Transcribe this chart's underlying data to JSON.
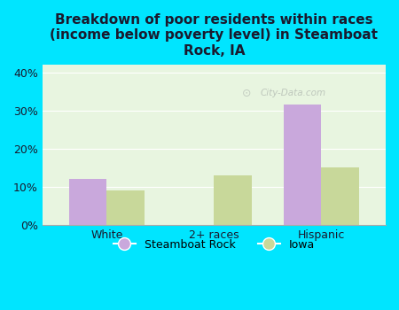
{
  "title": "Breakdown of poor residents within races\n(income below poverty level) in Steamboat\nRock, IA",
  "categories": [
    "White",
    "2+ races",
    "Hispanic"
  ],
  "steamboat_values": [
    12,
    0,
    31.5
  ],
  "iowa_values": [
    9,
    13,
    15
  ],
  "steamboat_color": "#c9a8dc",
  "iowa_color": "#c8d89a",
  "background_color": "#00e5ff",
  "plot_bg_color": "#e8f5e0",
  "yticks": [
    0,
    10,
    20,
    30,
    40
  ],
  "ylim": [
    0,
    42
  ],
  "bar_width": 0.35,
  "legend_labels": [
    "Steamboat Rock",
    "Iowa"
  ],
  "watermark": "City-Data.com"
}
